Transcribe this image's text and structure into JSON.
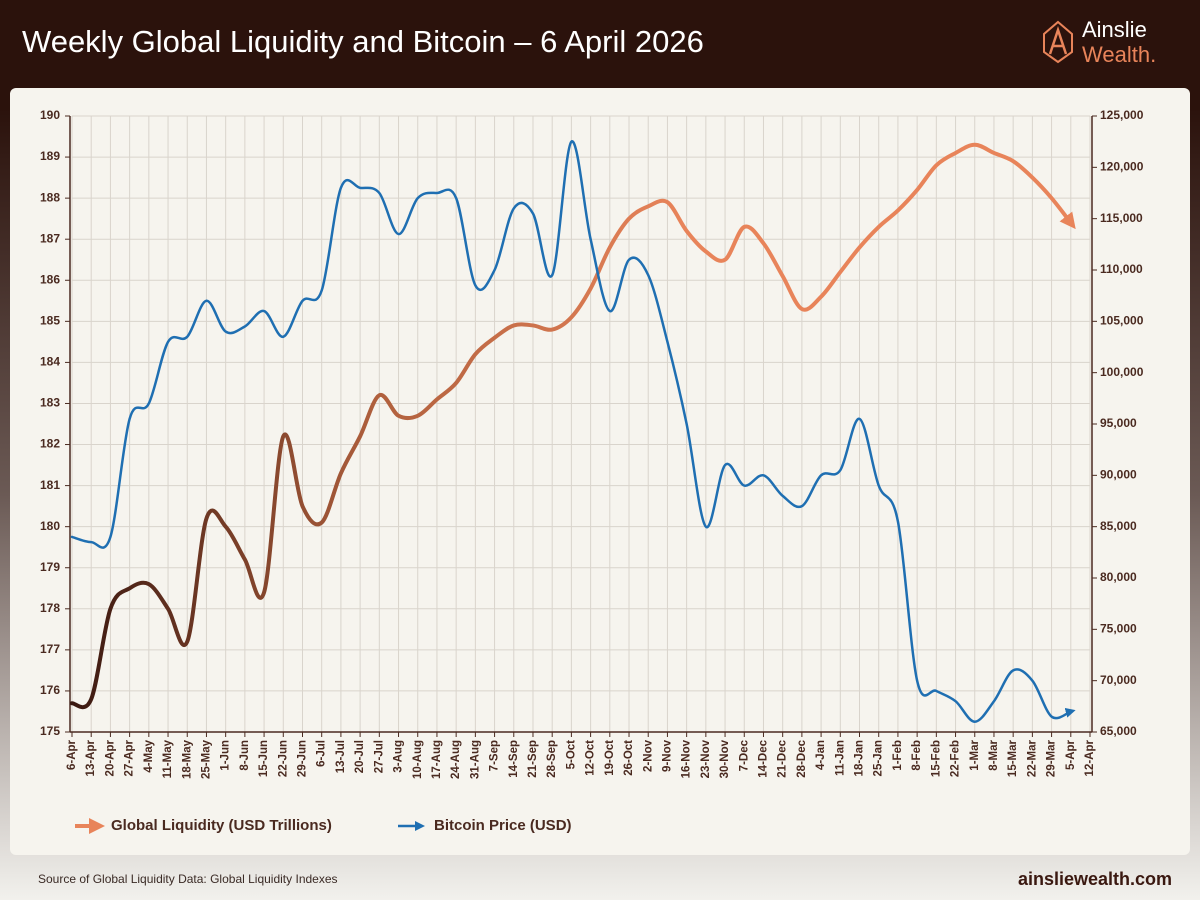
{
  "header": {
    "logo_top": "Ainslie",
    "logo_bottom": "Wealth."
  },
  "footer": {
    "source": "Source of Global Liquidity Data: Global Liquidity Indexes",
    "website": "ainsliewealth.com"
  },
  "chart_data": {
    "type": "line",
    "title": "Weekly Global Liquidity and Bitcoin – 6 April 2026",
    "categories": [
      "6-Apr",
      "13-Apr",
      "20-Apr",
      "27-Apr",
      "4-May",
      "11-May",
      "18-May",
      "25-May",
      "1-Jun",
      "8-Jun",
      "15-Jun",
      "22-Jun",
      "29-Jun",
      "6-Jul",
      "13-Jul",
      "20-Jul",
      "27-Jul",
      "3-Aug",
      "10-Aug",
      "17-Aug",
      "24-Aug",
      "31-Aug",
      "7-Sep",
      "14-Sep",
      "21-Sep",
      "28-Sep",
      "5-Oct",
      "12-Oct",
      "19-Oct",
      "26-Oct",
      "2-Nov",
      "9-Nov",
      "16-Nov",
      "23-Nov",
      "30-Nov",
      "7-Dec",
      "14-Dec",
      "21-Dec",
      "28-Dec",
      "4-Jan",
      "11-Jan",
      "18-Jan",
      "25-Jan",
      "1-Feb",
      "8-Feb",
      "15-Feb",
      "22-Feb",
      "1-Mar",
      "8-Mar",
      "15-Mar",
      "22-Mar",
      "29-Mar",
      "5-Apr",
      "12-Apr"
    ],
    "series": [
      {
        "name": "Global Liquidity (USD Trillions)",
        "color": "#e8845a",
        "axis": "y",
        "values": [
          175.7,
          175.8,
          178.0,
          178.5,
          178.6,
          178.0,
          177.2,
          180.2,
          180.0,
          179.2,
          178.4,
          182.2,
          180.5,
          180.1,
          181.3,
          182.2,
          183.2,
          182.7,
          182.7,
          183.1,
          183.5,
          184.2,
          184.6,
          184.9,
          184.9,
          184.8,
          185.1,
          185.8,
          186.8,
          187.5,
          187.8,
          187.9,
          187.2,
          186.7,
          186.5,
          187.3,
          186.9,
          186.1,
          185.3,
          185.6,
          186.2,
          186.8,
          187.3,
          187.7,
          188.2,
          188.8,
          189.1,
          189.3,
          189.1,
          188.9,
          188.5,
          188.0,
          187.4,
          null
        ]
      },
      {
        "name": "Bitcoin Price (USD)",
        "color": "#1f6fb2",
        "axis": "y2",
        "values": [
          84000,
          83500,
          84000,
          95500,
          97000,
          103000,
          103500,
          107000,
          104000,
          104500,
          106000,
          103500,
          107000,
          108000,
          118000,
          118000,
          117500,
          113500,
          117000,
          117500,
          117000,
          108500,
          110000,
          116000,
          115500,
          109500,
          122500,
          113000,
          106000,
          111000,
          109500,
          103000,
          95000,
          85000,
          91000,
          89000,
          90000,
          88000,
          87000,
          90000,
          90500,
          95500,
          89000,
          85500,
          70000,
          69000,
          68000,
          66000,
          68000,
          71000,
          70000,
          66500,
          67000,
          null
        ]
      }
    ],
    "ylim": [
      175,
      190
    ],
    "yticks": [
      175,
      176,
      177,
      178,
      179,
      180,
      181,
      182,
      183,
      184,
      185,
      186,
      187,
      188,
      189,
      190
    ],
    "y2lim": [
      65000,
      125000
    ],
    "y2ticks": [
      {
        "value": 65000,
        "label": "65,000"
      },
      {
        "value": 70000,
        "label": "70,000"
      },
      {
        "value": 75000,
        "label": "75,000"
      },
      {
        "value": 80000,
        "label": "80,000"
      },
      {
        "value": 85000,
        "label": "85,000"
      },
      {
        "value": 90000,
        "label": "90,000"
      },
      {
        "value": 95000,
        "label": "95,000"
      },
      {
        "value": 100000,
        "label": "100,000"
      },
      {
        "value": 105000,
        "label": "105,000"
      },
      {
        "value": 110000,
        "label": "110,000"
      },
      {
        "value": 115000,
        "label": "115,000"
      },
      {
        "value": 120000,
        "label": "120,000"
      },
      {
        "value": 125000,
        "label": "125,000"
      }
    ],
    "grid": true,
    "legend": "bottom"
  }
}
